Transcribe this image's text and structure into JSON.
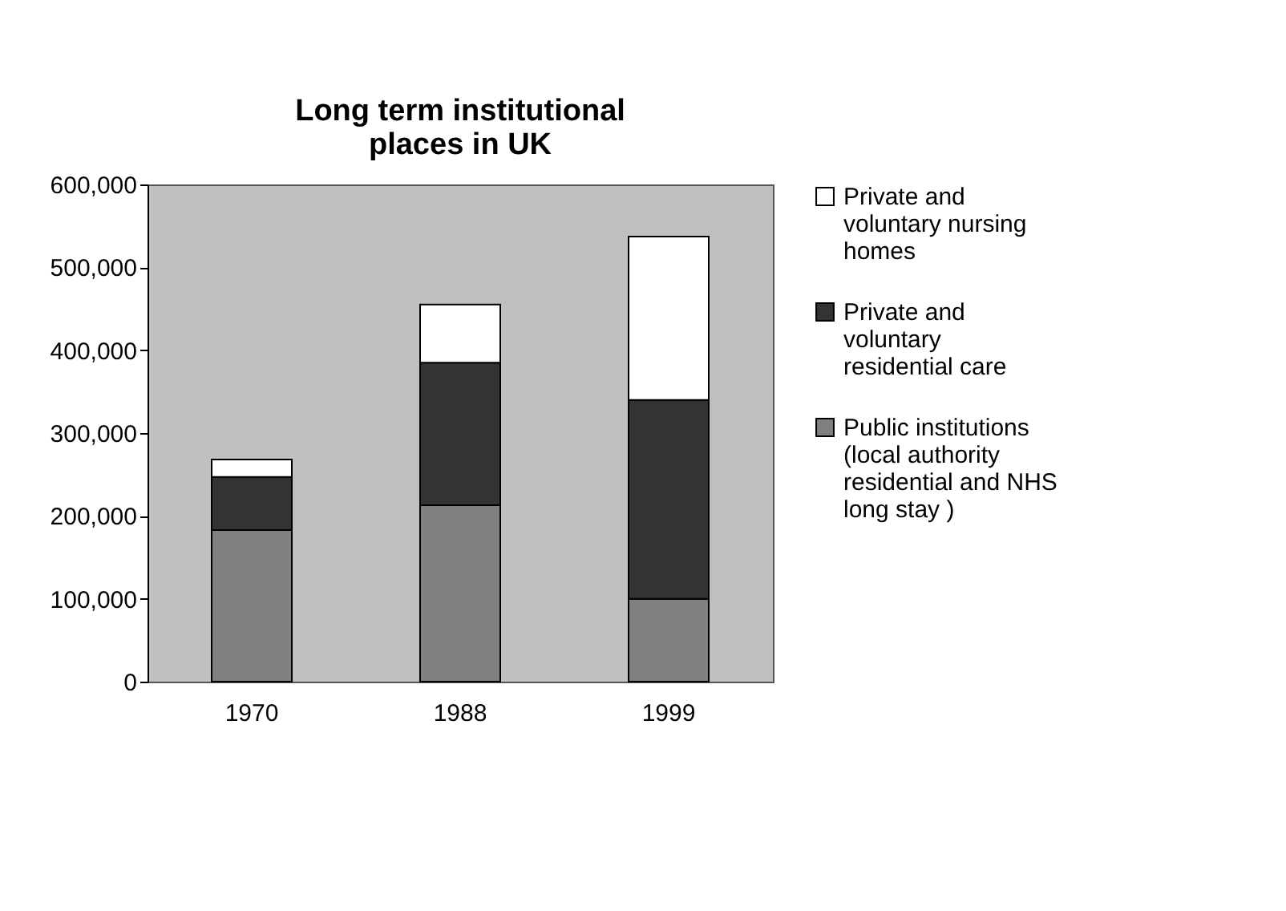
{
  "chart_data": {
    "type": "bar",
    "title": "Long term institutional places in UK",
    "stacked": true,
    "categories": [
      "1970",
      "1988",
      "1999"
    ],
    "series": [
      {
        "name": "Public institutions (local authority residential and NHS long stay )",
        "color": "#808080",
        "values": [
          183000,
          213000,
          100000
        ]
      },
      {
        "name": "Private and voluntary residential care",
        "color": "#333333",
        "values": [
          64000,
          172000,
          240000
        ]
      },
      {
        "name": "Private and voluntary nursing homes",
        "color": "#ffffff",
        "values": [
          21000,
          70000,
          197000
        ]
      }
    ],
    "ylim": [
      0,
      600000
    ],
    "yticks": [
      0,
      {
        "value": 100000,
        "label": "100,000"
      },
      {
        "value": 200000,
        "label": "200,000"
      },
      {
        "value": 300000,
        "label": "300,000"
      },
      {
        "value": 400000,
        "label": "400,000"
      },
      {
        "value": 500000,
        "label": "500,000"
      },
      {
        "value": 600000,
        "label": "600,000"
      }
    ],
    "grid": false,
    "legend": "right"
  }
}
